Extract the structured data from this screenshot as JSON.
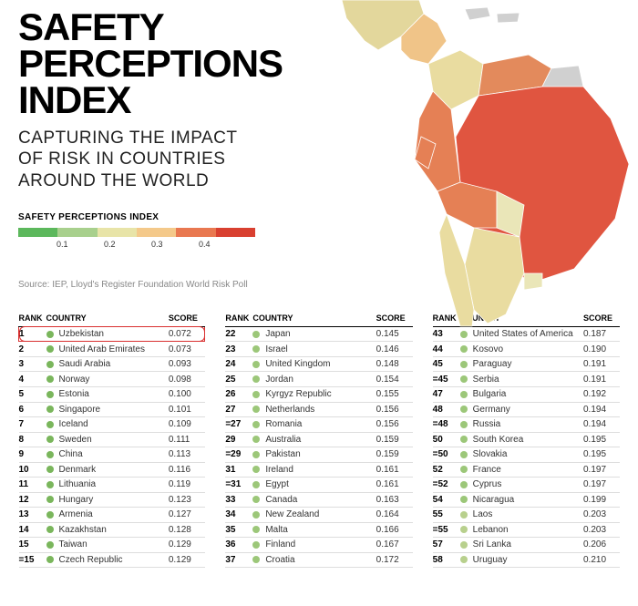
{
  "title_line1": "SAFETY",
  "title_line2": "PERCEPTIONS",
  "title_line3": "INDEX",
  "subtitle_line1": "CAPTURING THE IMPACT",
  "subtitle_line2": "OF RISK IN COUNTRIES",
  "subtitle_line3": "AROUND THE WORLD",
  "legend": {
    "title": "SAFETY PERCEPTIONS INDEX",
    "ticks": [
      "0.1",
      "0.2",
      "0.3",
      "0.4"
    ],
    "colors": [
      "#5cb85c",
      "#a8d08d",
      "#e8e4a8",
      "#f4c98a",
      "#e97850",
      "#d94030"
    ]
  },
  "source": "Source: IEP, Lloyd's Register Foundation World Risk Poll",
  "table_headers": {
    "rank": "RANK",
    "country": "COUNTRY",
    "score": "SCORE"
  },
  "dot_colors": {
    "low": "#7ab65c",
    "lowmid": "#9cc779"
  },
  "highlight_color": "#d93030",
  "columns": [
    [
      {
        "rank": "1",
        "country": "Uzbekistan",
        "score": "0.072",
        "c": "#7ab65c",
        "hl": true
      },
      {
        "rank": "2",
        "country": "United Arab Emirates",
        "score": "0.073",
        "c": "#7ab65c"
      },
      {
        "rank": "3",
        "country": "Saudi Arabia",
        "score": "0.093",
        "c": "#7ab65c"
      },
      {
        "rank": "4",
        "country": "Norway",
        "score": "0.098",
        "c": "#7ab65c"
      },
      {
        "rank": "5",
        "country": "Estonia",
        "score": "0.100",
        "c": "#7ab65c"
      },
      {
        "rank": "6",
        "country": "Singapore",
        "score": "0.101",
        "c": "#7ab65c"
      },
      {
        "rank": "7",
        "country": "Iceland",
        "score": "0.109",
        "c": "#7ab65c"
      },
      {
        "rank": "8",
        "country": "Sweden",
        "score": "0.111",
        "c": "#7ab65c"
      },
      {
        "rank": "9",
        "country": "China",
        "score": "0.113",
        "c": "#7ab65c"
      },
      {
        "rank": "10",
        "country": "Denmark",
        "score": "0.116",
        "c": "#7ab65c"
      },
      {
        "rank": "11",
        "country": "Lithuania",
        "score": "0.119",
        "c": "#7ab65c"
      },
      {
        "rank": "12",
        "country": "Hungary",
        "score": "0.123",
        "c": "#7ab65c"
      },
      {
        "rank": "13",
        "country": "Armenia",
        "score": "0.127",
        "c": "#7ab65c"
      },
      {
        "rank": "14",
        "country": "Kazakhstan",
        "score": "0.128",
        "c": "#7ab65c"
      },
      {
        "rank": "15",
        "country": "Taiwan",
        "score": "0.129",
        "c": "#7ab65c"
      },
      {
        "rank": "=15",
        "country": "Czech Republic",
        "score": "0.129",
        "c": "#7ab65c"
      }
    ],
    [
      {
        "rank": "22",
        "country": "Japan",
        "score": "0.145",
        "c": "#9cc779"
      },
      {
        "rank": "23",
        "country": "Israel",
        "score": "0.146",
        "c": "#9cc779"
      },
      {
        "rank": "24",
        "country": "United Kingdom",
        "score": "0.148",
        "c": "#9cc779"
      },
      {
        "rank": "25",
        "country": "Jordan",
        "score": "0.154",
        "c": "#9cc779"
      },
      {
        "rank": "26",
        "country": "Kyrgyz Republic",
        "score": "0.155",
        "c": "#9cc779"
      },
      {
        "rank": "27",
        "country": "Netherlands",
        "score": "0.156",
        "c": "#9cc779"
      },
      {
        "rank": "=27",
        "country": "Romania",
        "score": "0.156",
        "c": "#9cc779"
      },
      {
        "rank": "29",
        "country": "Australia",
        "score": "0.159",
        "c": "#9cc779"
      },
      {
        "rank": "=29",
        "country": "Pakistan",
        "score": "0.159",
        "c": "#9cc779"
      },
      {
        "rank": "31",
        "country": "Ireland",
        "score": "0.161",
        "c": "#9cc779"
      },
      {
        "rank": "=31",
        "country": "Egypt",
        "score": "0.161",
        "c": "#9cc779"
      },
      {
        "rank": "33",
        "country": "Canada",
        "score": "0.163",
        "c": "#9cc779"
      },
      {
        "rank": "34",
        "country": "New Zealand",
        "score": "0.164",
        "c": "#9cc779"
      },
      {
        "rank": "35",
        "country": "Malta",
        "score": "0.166",
        "c": "#9cc779"
      },
      {
        "rank": "36",
        "country": "Finland",
        "score": "0.167",
        "c": "#9cc779"
      },
      {
        "rank": "37",
        "country": "Croatia",
        "score": "0.172",
        "c": "#9cc779"
      }
    ],
    [
      {
        "rank": "43",
        "country": "United States of America",
        "score": "0.187",
        "c": "#9cc779"
      },
      {
        "rank": "44",
        "country": "Kosovo",
        "score": "0.190",
        "c": "#9cc779"
      },
      {
        "rank": "45",
        "country": "Paraguay",
        "score": "0.191",
        "c": "#9cc779"
      },
      {
        "rank": "=45",
        "country": "Serbia",
        "score": "0.191",
        "c": "#9cc779"
      },
      {
        "rank": "47",
        "country": "Bulgaria",
        "score": "0.192",
        "c": "#9cc779"
      },
      {
        "rank": "48",
        "country": "Germany",
        "score": "0.194",
        "c": "#9cc779"
      },
      {
        "rank": "=48",
        "country": "Russia",
        "score": "0.194",
        "c": "#9cc779"
      },
      {
        "rank": "50",
        "country": "South Korea",
        "score": "0.195",
        "c": "#9cc779"
      },
      {
        "rank": "=50",
        "country": "Slovakia",
        "score": "0.195",
        "c": "#9cc779"
      },
      {
        "rank": "52",
        "country": "France",
        "score": "0.197",
        "c": "#9cc779"
      },
      {
        "rank": "=52",
        "country": "Cyprus",
        "score": "0.197",
        "c": "#9cc779"
      },
      {
        "rank": "54",
        "country": "Nicaragua",
        "score": "0.199",
        "c": "#9cc779"
      },
      {
        "rank": "55",
        "country": "Laos",
        "score": "0.203",
        "c": "#b8d08d"
      },
      {
        "rank": "=55",
        "country": "Lebanon",
        "score": "0.203",
        "c": "#b8d08d"
      },
      {
        "rank": "57",
        "country": "Sri Lanka",
        "score": "0.206",
        "c": "#b8d08d"
      },
      {
        "rank": "58",
        "country": "Uruguay",
        "score": "0.210",
        "c": "#b8d08d"
      }
    ]
  ],
  "map_colors": {
    "land_default": "#eae6b8",
    "brazil": "#e05540",
    "bolivia": "#e58055",
    "venezuela": "#e38a5c",
    "colombia": "#e9dca0",
    "peru": "#e58055",
    "mexico": "#e3d79c",
    "argentina": "#e9dca0",
    "chile": "#e9dca0",
    "centralamerica": "#f0c488",
    "caribbean": "#d0d0d0",
    "borders": "#ffffff"
  }
}
